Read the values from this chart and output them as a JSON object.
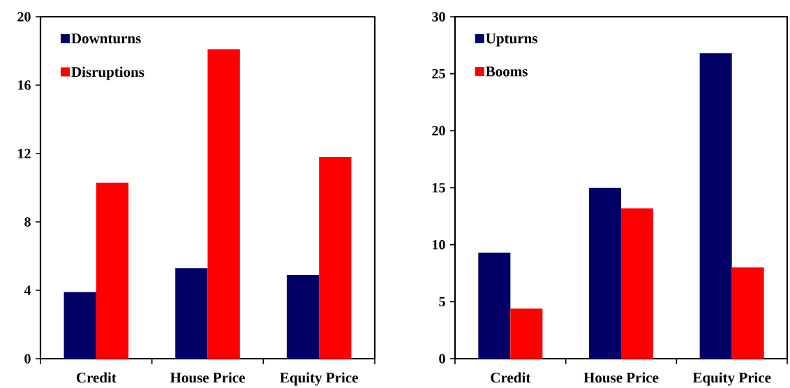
{
  "chart_data": [
    {
      "type": "bar",
      "categories": [
        "Credit",
        "House Price",
        "Equity Price"
      ],
      "series": [
        {
          "name": "Downturns",
          "color": "#000066",
          "values": [
            3.9,
            5.3,
            4.9
          ]
        },
        {
          "name": "Disruptions",
          "color": "#ff0000",
          "values": [
            10.3,
            18.1,
            11.8
          ]
        }
      ],
      "ylim": [
        0,
        20
      ],
      "yticks": [
        0,
        4,
        8,
        12,
        16,
        20
      ],
      "legend": "top left"
    },
    {
      "type": "bar",
      "categories": [
        "Credit",
        "House Price",
        "Equity Price"
      ],
      "series": [
        {
          "name": "Upturns",
          "color": "#000066",
          "values": [
            9.3,
            15.0,
            26.8
          ]
        },
        {
          "name": "Booms",
          "color": "#ff0000",
          "values": [
            4.4,
            13.2,
            8.0
          ]
        }
      ],
      "ylim": [
        0,
        30
      ],
      "yticks": [
        0,
        5,
        10,
        15,
        20,
        25,
        30
      ],
      "legend": "top left"
    }
  ]
}
